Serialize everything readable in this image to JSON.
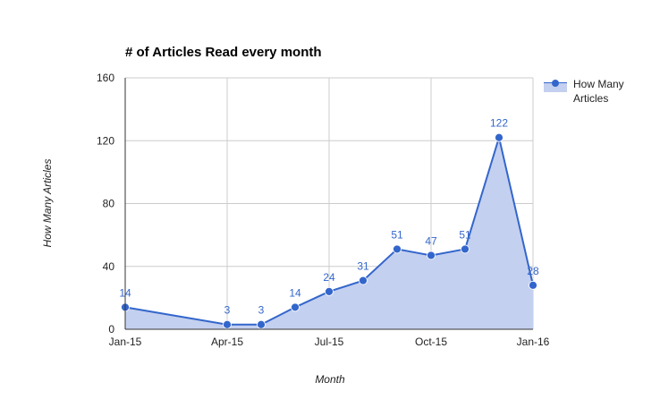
{
  "chart_data": {
    "type": "area",
    "title": "# of Articles Read every month",
    "xlabel": "Month",
    "ylabel": "How Many Articles",
    "x": [
      "2015-01",
      "2015-04",
      "2015-05",
      "2015-06",
      "2015-07",
      "2015-08",
      "2015-09",
      "2015-10",
      "2015-11",
      "2015-12",
      "2016-01"
    ],
    "values": [
      14,
      3,
      3,
      14,
      24,
      31,
      51,
      47,
      51,
      122,
      28
    ],
    "data_labels": [
      "14",
      "3",
      "3",
      "14",
      "24",
      "31",
      "51",
      "47",
      "51",
      "122",
      "28"
    ],
    "series": [
      {
        "name": "How Many Articles",
        "values": [
          14,
          3,
          3,
          14,
          24,
          31,
          51,
          47,
          51,
          122,
          28
        ],
        "color": "#3366cc",
        "fill_color": "#c4d0ef"
      }
    ],
    "xlim": [
      "2015-01",
      "2016-01"
    ],
    "ylim": [
      0,
      160
    ],
    "x_ticks": [
      "2015-01",
      "2015-04",
      "2015-07",
      "2015-10",
      "2016-01"
    ],
    "x_tick_labels": [
      "Jan-15",
      "Apr-15",
      "Jul-15",
      "Oct-15",
      "Jan-16"
    ],
    "y_ticks": [
      0,
      40,
      80,
      120,
      160
    ],
    "y_tick_labels": [
      "0",
      "40",
      "80",
      "120",
      "160"
    ],
    "grid": true,
    "legend": {
      "position": "right",
      "entries": [
        "How Many",
        "Articles"
      ]
    },
    "colors": {
      "series": "#3366cc",
      "fill": "#c4d0ef",
      "grid": "#cccccc",
      "axis": "#333333",
      "text": "#222222"
    }
  }
}
